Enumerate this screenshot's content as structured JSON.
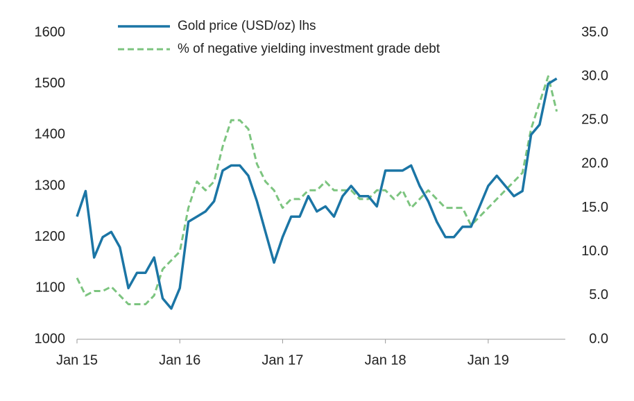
{
  "chart_data": {
    "type": "line",
    "x": [
      "2015-01",
      "2015-02",
      "2015-03",
      "2015-04",
      "2015-05",
      "2015-06",
      "2015-07",
      "2015-08",
      "2015-09",
      "2015-10",
      "2015-11",
      "2015-12",
      "2016-01",
      "2016-02",
      "2016-03",
      "2016-04",
      "2016-05",
      "2016-06",
      "2016-07",
      "2016-08",
      "2016-09",
      "2016-10",
      "2016-11",
      "2016-12",
      "2017-01",
      "2017-02",
      "2017-03",
      "2017-04",
      "2017-05",
      "2017-06",
      "2017-07",
      "2017-08",
      "2017-09",
      "2017-10",
      "2017-11",
      "2017-12",
      "2018-01",
      "2018-02",
      "2018-03",
      "2018-04",
      "2018-05",
      "2018-06",
      "2018-07",
      "2018-08",
      "2018-09",
      "2018-10",
      "2018-11",
      "2018-12",
      "2019-01",
      "2019-02",
      "2019-03",
      "2019-04",
      "2019-05",
      "2019-06",
      "2019-07",
      "2019-08",
      "2019-09"
    ],
    "series": [
      {
        "name": "Gold price (USD/oz) lhs",
        "color": "#1b75a5",
        "dashed": false,
        "values": [
          1240,
          1290,
          1160,
          1200,
          1210,
          1180,
          1100,
          1130,
          1130,
          1160,
          1080,
          1060,
          1100,
          1230,
          1240,
          1250,
          1270,
          1330,
          1340,
          1340,
          1320,
          1270,
          1210,
          1150,
          1200,
          1240,
          1240,
          1280,
          1250,
          1260,
          1240,
          1280,
          1300,
          1280,
          1280,
          1260,
          1330,
          1330,
          1330,
          1340,
          1300,
          1270,
          1230,
          1200,
          1200,
          1220,
          1220,
          1260,
          1300,
          1320,
          1300,
          1280,
          1290,
          1400,
          1420,
          1500,
          1510
        ]
      },
      {
        "name": "% of negative yielding investment grade debt",
        "color": "#7cc47f",
        "dashed": true,
        "axis": "y2",
        "values": [
          7,
          5,
          5.5,
          5.5,
          6,
          5,
          4,
          4,
          4,
          5,
          8,
          9,
          10,
          15,
          18,
          17,
          18,
          22,
          25,
          25,
          24,
          20,
          18,
          17,
          15,
          16,
          16,
          17,
          17,
          18,
          17,
          17,
          17,
          16,
          16,
          17,
          17,
          16,
          17,
          15,
          16,
          17,
          16,
          15,
          15,
          15,
          13,
          14,
          15,
          16,
          17,
          18,
          19,
          24,
          27,
          30,
          26
        ]
      }
    ],
    "xlim": [
      "2015-01",
      "2019-10"
    ],
    "xticks": [
      {
        "value": "2015-01",
        "label": "Jan 15"
      },
      {
        "value": "2016-01",
        "label": "Jan 16"
      },
      {
        "value": "2017-01",
        "label": "Jan 17"
      },
      {
        "value": "2018-01",
        "label": "Jan 18"
      },
      {
        "value": "2019-01",
        "label": "Jan 19"
      }
    ],
    "ylim": [
      1000,
      1600
    ],
    "yticks": [
      1000,
      1100,
      1200,
      1300,
      1400,
      1500,
      1600
    ],
    "y2lim": [
      0,
      35
    ],
    "y2ticks": [
      {
        "value": 0,
        "label": "0.0"
      },
      {
        "value": 5,
        "label": "5.0"
      },
      {
        "value": 10,
        "label": "10.0"
      },
      {
        "value": 15,
        "label": "15.0"
      },
      {
        "value": 20,
        "label": "20.0"
      },
      {
        "value": 25,
        "label": "25.0"
      },
      {
        "value": 30,
        "label": "30.0"
      },
      {
        "value": 35,
        "label": "35.0"
      }
    ],
    "legend": "top"
  }
}
